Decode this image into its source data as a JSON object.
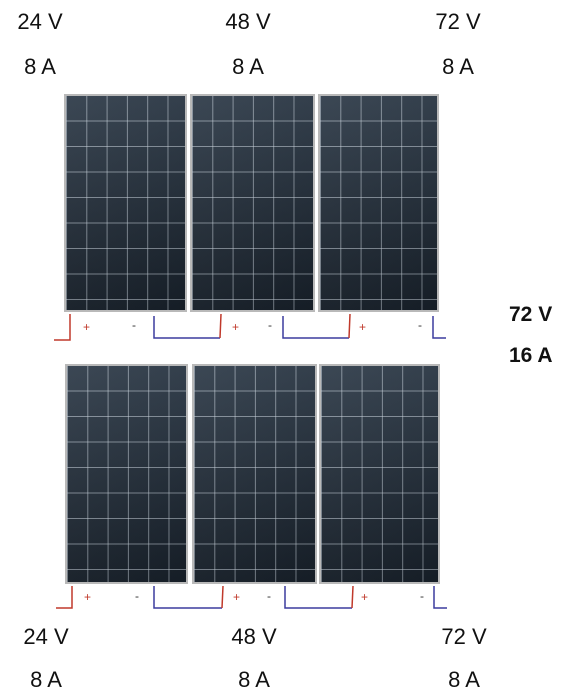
{
  "top_array": {
    "labels": [
      {
        "voltage": "24 V",
        "current": "8 A"
      },
      {
        "voltage": "48 V",
        "current": "8 A"
      },
      {
        "voltage": "72 V",
        "current": "8 A"
      }
    ]
  },
  "bottom_array": {
    "labels": [
      {
        "voltage": "24 V",
        "current": "8 A"
      },
      {
        "voltage": "48 V",
        "current": "8 A"
      },
      {
        "voltage": "72 V",
        "current": "8 A"
      }
    ]
  },
  "total": {
    "voltage": "72 V",
    "current": "16 A"
  },
  "terminals": {
    "positive": "+",
    "negative": "-"
  },
  "colors": {
    "positive_wire": "#c0392b",
    "negative_wire": "#3b3b9e",
    "panel_cell": "#1f2a35",
    "panel_frame": "#b9b9b9"
  }
}
